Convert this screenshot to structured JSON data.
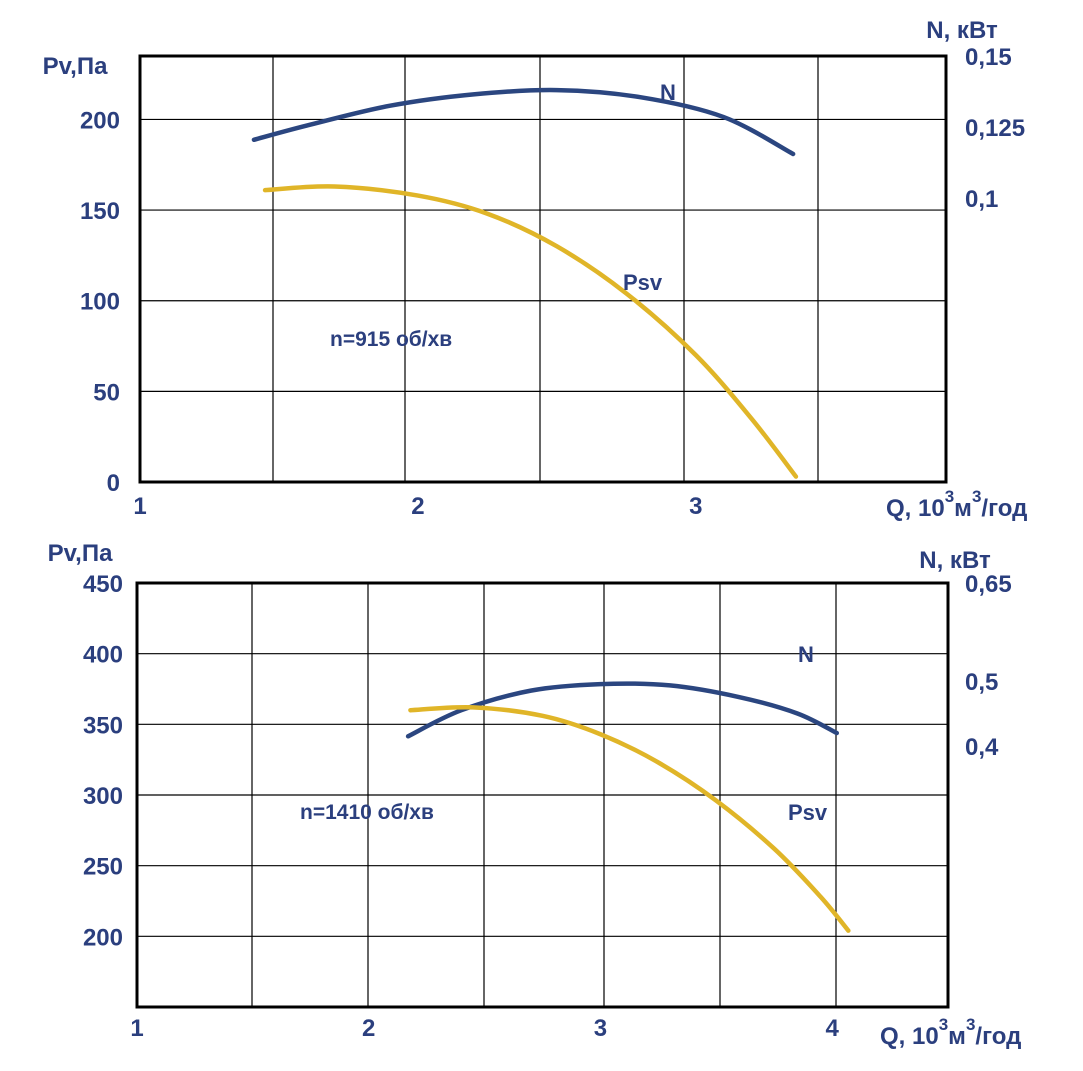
{
  "colors": {
    "text": "#2b3f7e",
    "power_curve": "#2b4680",
    "pressure_curve": "#e0b528",
    "grid": "#000000"
  },
  "chart_data": [
    {
      "type": "line",
      "left_axis_title": "Pv,Па",
      "right_axis_title": "N, кВт",
      "x_axis_title": "Q, 10",
      "x_axis_exp1": "3",
      "x_axis_unit": "м",
      "x_axis_exp2": "3",
      "x_axis_tail": "/год",
      "speed_label": "n=915 об/хв",
      "xlim": [
        1,
        3.9
      ],
      "x_ticks": [
        "1",
        "2",
        "3"
      ],
      "x_tick_values": [
        1,
        2,
        3
      ],
      "ylim": [
        0,
        235
      ],
      "y_ticks": [
        "0",
        "50",
        "100",
        "150",
        "200"
      ],
      "y_tick_values": [
        0,
        50,
        100,
        150,
        200
      ],
      "y2lim": [
        0,
        0.15
      ],
      "y2_ticks": [
        "0,15",
        "0,125",
        "0,1"
      ],
      "y2_tick_values": [
        0.15,
        0.125,
        0.1
      ],
      "grid": true,
      "series": [
        {
          "name": "N",
          "axis": "right",
          "x": [
            1.41,
            1.6,
            1.9,
            2.2,
            2.5,
            2.8,
            3.1,
            3.35
          ],
          "y": [
            0.1205,
            0.1255,
            0.1325,
            0.1365,
            0.138,
            0.1355,
            0.1285,
            0.1155
          ]
        },
        {
          "name": "Psv",
          "axis": "left",
          "x": [
            1.45,
            1.7,
            2.0,
            2.25,
            2.5,
            2.75,
            3.0,
            3.2,
            3.36
          ],
          "y": [
            161,
            163,
            158,
            148,
            130,
            104,
            70,
            35,
            3
          ]
        }
      ]
    },
    {
      "type": "line",
      "left_axis_title": "Pv,Па",
      "right_axis_title": "N, кВт",
      "x_axis_title": "Q, 10",
      "x_axis_exp1": "3",
      "x_axis_unit": "м",
      "x_axis_exp2": "3",
      "x_axis_tail": "/год",
      "speed_label": "n=1410 об/хв",
      "xlim": [
        1,
        4.5
      ],
      "x_ticks": [
        "1",
        "2",
        "3",
        "4"
      ],
      "x_tick_values": [
        1,
        2,
        3,
        4
      ],
      "ylim": [
        150,
        450
      ],
      "y_ticks": [
        "450",
        "400",
        "350",
        "300",
        "250",
        "200"
      ],
      "y_tick_values": [
        450,
        400,
        350,
        300,
        250,
        200
      ],
      "y2lim": [
        0,
        0.65
      ],
      "y2_ticks": [
        "0,65",
        "0,5",
        "0,4"
      ],
      "y2_tick_values": [
        0.65,
        0.5,
        0.4
      ],
      "grid": true,
      "series": [
        {
          "name": "N",
          "axis": "right",
          "x": [
            2.17,
            2.4,
            2.7,
            3.0,
            3.3,
            3.6,
            3.85,
            4.02
          ],
          "y": [
            0.415,
            0.455,
            0.485,
            0.495,
            0.493,
            0.475,
            0.45,
            0.42
          ]
        },
        {
          "name": "Psv",
          "axis": "left",
          "x": [
            2.18,
            2.45,
            2.75,
            3.0,
            3.25,
            3.5,
            3.75,
            3.95,
            4.07
          ],
          "y": [
            360,
            362,
            356,
            343,
            323,
            296,
            262,
            228,
            204
          ]
        }
      ]
    }
  ]
}
